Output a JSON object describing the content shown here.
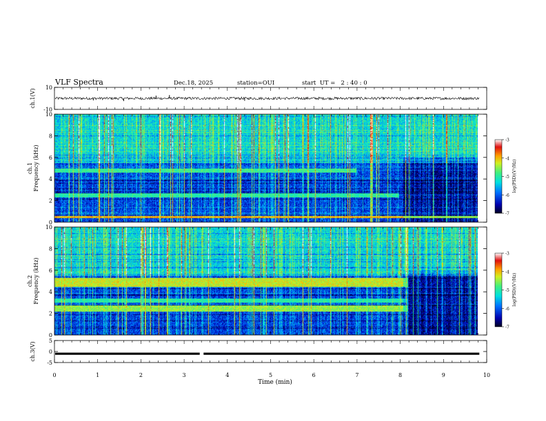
{
  "header": {
    "title": "VLF Spectra",
    "date": "Dec.18, 2025",
    "station": "station=OUI",
    "start": "start  UT =   2 : 40 : 0"
  },
  "colors": {
    "spectrogram": [
      "#000020",
      "#00008c",
      "#0044dd",
      "#00c8e6",
      "#20e6a0",
      "#a0f040",
      "#f0f000",
      "#ff9000",
      "#e01010",
      "#ffffff"
    ],
    "trace": "#000000"
  },
  "chart_data": [
    {
      "type": "line",
      "panel": "ch1-waveform",
      "ylabel": "ch.1(V)",
      "ylim": [
        -10,
        10
      ],
      "y_ticks": [
        "10",
        "-10"
      ],
      "xlim": [
        0,
        10
      ],
      "baseline": 0,
      "typical_amplitude": 1.2,
      "spikes": [
        {
          "x": 2.35,
          "y": 2.5
        },
        {
          "x": 2.66,
          "y": 3.0
        },
        {
          "x": 1.6,
          "y": -2.5
        },
        {
          "x": 4.4,
          "y": -2.2
        },
        {
          "x": 0.9,
          "y": -1.8
        }
      ]
    },
    {
      "type": "heatmap",
      "panel": "ch1-spectrogram",
      "ylabel": "ch.1\nFrequency (kHz)",
      "xlim": [
        0,
        9.83
      ],
      "ylim": [
        0,
        10
      ],
      "y_ticks": [
        "0",
        "2",
        "4",
        "6",
        "8",
        "10"
      ],
      "colorbar": {
        "label": "log(PSD)(V²/Hz)",
        "range": [
          -7,
          -3
        ],
        "ticks": [
          "-3",
          "-4",
          "-5",
          "-6",
          "-7"
        ]
      },
      "bands": [
        {
          "f_low": 4.6,
          "f_high": 5.0,
          "level": -4.9,
          "until": 7.0
        },
        {
          "f_low": 2.3,
          "f_high": 2.7,
          "level": -5.0,
          "until": 8.0
        },
        {
          "f_low": 0.4,
          "f_high": 0.6,
          "level": -4.0,
          "until": 9.83
        }
      ]
    },
    {
      "type": "heatmap",
      "panel": "ch2-spectrogram",
      "ylabel": "ch.2\nFrequency (kHz)",
      "xlim": [
        0,
        9.83
      ],
      "ylim": [
        0,
        10
      ],
      "y_ticks": [
        "0",
        "2",
        "4",
        "6",
        "8",
        "10"
      ],
      "colorbar": {
        "label": "log(PSD)(V²/Hz)",
        "range": [
          -7,
          -3
        ],
        "ticks": [
          "-3",
          "-4",
          "-5",
          "-6",
          "-7"
        ]
      },
      "bands": [
        {
          "f_low": 4.5,
          "f_high": 5.3,
          "level": -4.3,
          "until": 8.2
        },
        {
          "f_low": 2.2,
          "f_high": 2.8,
          "level": -4.5,
          "until": 8.2
        },
        {
          "f_low": 3.0,
          "f_high": 3.4,
          "level": -5.0,
          "until": 8.2
        }
      ]
    },
    {
      "type": "line",
      "panel": "ch3-waveform",
      "ylabel": "ch.3(V)",
      "ylim": [
        -5,
        5
      ],
      "y_ticks": [
        "5",
        "0",
        "-5"
      ],
      "xlim": [
        0,
        9.83
      ],
      "baseline": -1.0,
      "gap": {
        "x_start": 3.36,
        "x_end": 3.45
      }
    }
  ],
  "x_axis": {
    "label": "Time (min)",
    "range": [
      0,
      10
    ],
    "ticks": [
      "0",
      "1",
      "2",
      "3",
      "4",
      "5",
      "6",
      "7",
      "8",
      "9",
      "10"
    ]
  }
}
